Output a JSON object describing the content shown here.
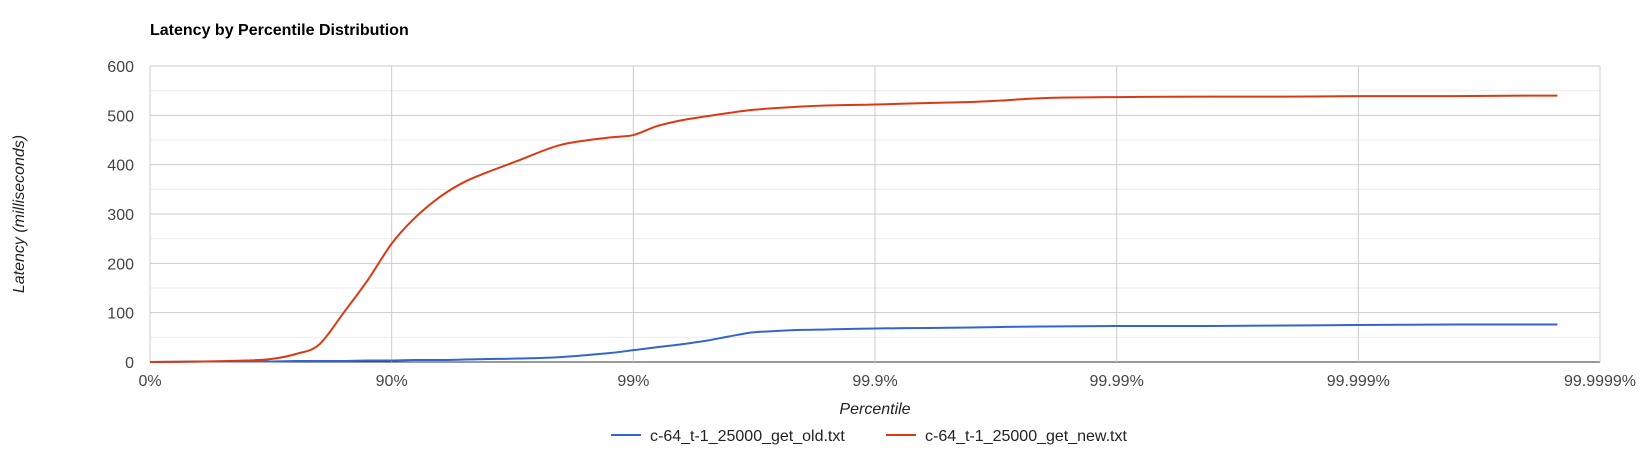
{
  "chart_data": {
    "type": "line",
    "title": "Latency by Percentile Distribution",
    "xlabel": "Percentile",
    "ylabel": "Latency (milliseconds)",
    "x_scale": "log-percentile",
    "x_ticks": [
      "0%",
      "90%",
      "99%",
      "99.9%",
      "99.99%",
      "99.999%",
      "99.9999%"
    ],
    "ylim": [
      0,
      600
    ],
    "y_ticks": [
      0,
      100,
      200,
      300,
      400,
      500,
      600
    ],
    "grid": true,
    "legend_position": "bottom",
    "x": [
      "0%",
      "40%",
      "60%",
      "68.4%",
      "75%",
      "80%",
      "84.2%",
      "87.4%",
      "90%",
      "91.9%",
      "93.7%",
      "95%",
      "96%",
      "97%",
      "98%",
      "98.74%",
      "99%",
      "99.2%",
      "99.37%",
      "99.5%",
      "99.6%",
      "99.68%",
      "99.75%",
      "99.8%",
      "99.84%",
      "99.87%",
      "99.9%",
      "99.94%",
      "99.96%",
      "99.97%",
      "99.98%",
      "99.99%",
      "99.996%",
      "99.998%",
      "99.999%",
      "99.9996%",
      "99.9998%",
      "99.99985%"
    ],
    "series": [
      {
        "name": "c-64_t-1_25000_get_old.txt",
        "color": "#3366cc",
        "values": [
          0,
          1,
          1,
          1,
          2,
          2,
          2,
          3,
          3,
          4,
          4,
          5,
          6,
          7,
          10,
          18,
          24,
          30,
          36,
          43,
          52,
          60,
          63,
          65,
          66,
          67,
          68,
          69,
          70,
          71,
          72,
          73,
          73,
          74,
          75,
          76,
          76,
          76
        ]
      },
      {
        "name": "c-64_t-1_25000_get_new.txt",
        "color": "#dc3912",
        "values": [
          0,
          1,
          3,
          6,
          16,
          35,
          100,
          165,
          240,
          290,
          335,
          365,
          385,
          408,
          440,
          455,
          460,
          478,
          490,
          498,
          505,
          511,
          515,
          518,
          520,
          521,
          522,
          525,
          527,
          530,
          535,
          537,
          538,
          538,
          539,
          539,
          540,
          540
        ]
      }
    ]
  }
}
